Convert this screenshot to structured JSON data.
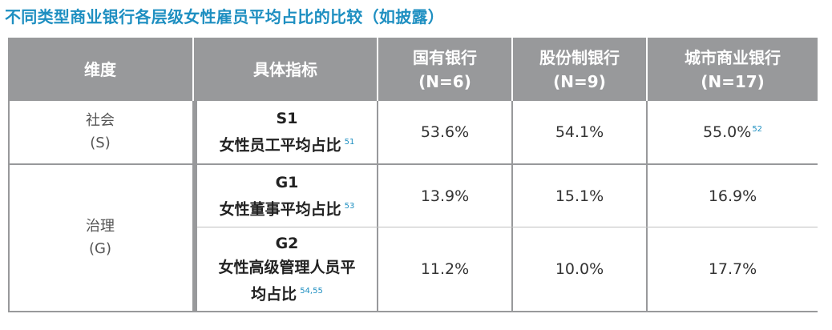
{
  "title": "不同类型商业银行各层级女性雇员平均占比的比较（如披露）",
  "headers": {
    "dimension": "维度",
    "indicator": "具体指标",
    "col1": [
      "国有银行",
      "(N=6)"
    ],
    "col2": [
      "股份制银行",
      "(N=9)"
    ],
    "col3": [
      "城市商业银行",
      "(N=17)"
    ]
  },
  "groups": [
    {
      "name": "社会",
      "abbr": "(S)"
    },
    {
      "name": "治理",
      "abbr": "(G)"
    }
  ],
  "rows": [
    {
      "code": "S1",
      "name_lines": [
        "女性员工平均占比"
      ],
      "sup": "51",
      "values": [
        "53.6%",
        "54.1%",
        "55.0%"
      ],
      "value_sup": "52"
    },
    {
      "code": "G1",
      "name_lines": [
        "女性董事平均占比"
      ],
      "sup": "53",
      "values": [
        "13.9%",
        "15.1%",
        "16.9%"
      ],
      "value_sup": ""
    },
    {
      "code": "G2",
      "name_lines": [
        "女性高级管理人员平",
        "均占比"
      ],
      "sup": "54,55",
      "values": [
        "11.2%",
        "10.0%",
        "17.7%"
      ],
      "value_sup": ""
    }
  ]
}
